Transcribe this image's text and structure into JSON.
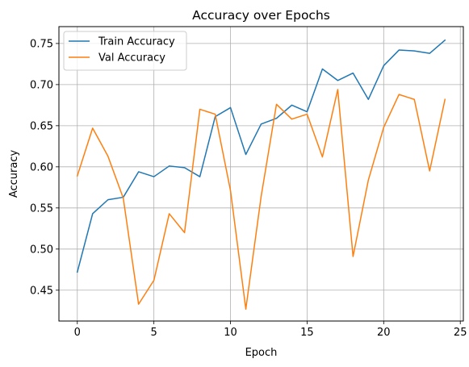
{
  "chart_data": {
    "type": "line",
    "title": "Accuracy over Epochs",
    "xlabel": "Epoch",
    "ylabel": "Accuracy",
    "xlim": [
      -1.2,
      25.2
    ],
    "ylim": [
      0.4125,
      0.7705
    ],
    "xticks": [
      0,
      5,
      10,
      15,
      20,
      25
    ],
    "yticks": [
      0.45,
      0.5,
      0.55,
      0.6,
      0.65,
      0.7,
      0.75
    ],
    "grid": true,
    "legend_position": "upper-left",
    "x": [
      0,
      1,
      2,
      3,
      4,
      5,
      6,
      7,
      8,
      9,
      10,
      11,
      12,
      13,
      14,
      15,
      16,
      17,
      18,
      19,
      20,
      21,
      22,
      23,
      24
    ],
    "series": [
      {
        "name": "Train Accuracy",
        "color": "#1f77b4",
        "values": [
          0.472,
          0.543,
          0.56,
          0.563,
          0.594,
          0.588,
          0.601,
          0.599,
          0.588,
          0.661,
          0.672,
          0.615,
          0.652,
          0.659,
          0.675,
          0.667,
          0.719,
          0.705,
          0.714,
          0.682,
          0.723,
          0.742,
          0.741,
          0.738,
          0.754
        ]
      },
      {
        "name": "Val Accuracy",
        "color": "#ff7f0e",
        "values": [
          0.589,
          0.647,
          0.613,
          0.562,
          0.433,
          0.462,
          0.543,
          0.52,
          0.67,
          0.664,
          0.571,
          0.427,
          0.564,
          0.676,
          0.658,
          0.664,
          0.612,
          0.694,
          0.491,
          0.584,
          0.648,
          0.688,
          0.682,
          0.595,
          0.682
        ]
      }
    ]
  }
}
